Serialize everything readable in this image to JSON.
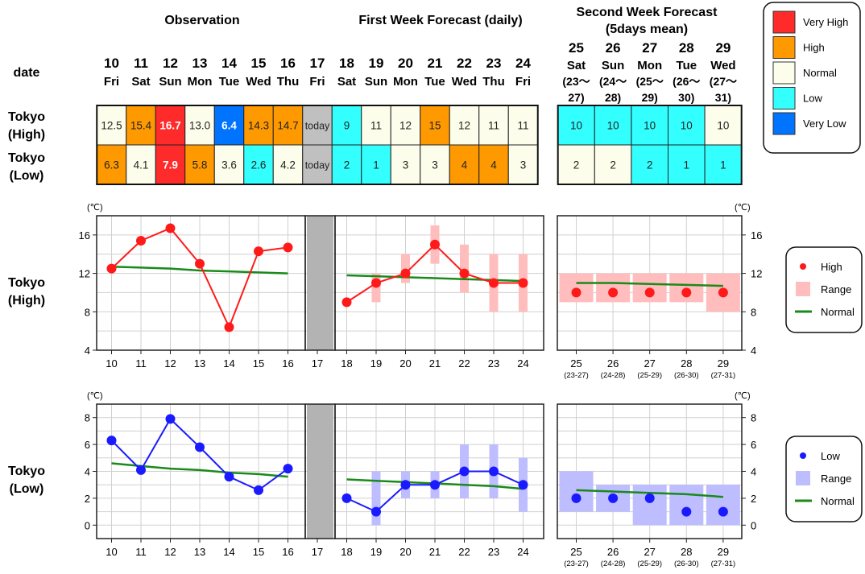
{
  "headers": {
    "observation": "Observation",
    "first_week": "First Week Forecast (daily)",
    "second_week_line1": "Second Week Forecast",
    "second_week_line2": "(5days mean)",
    "date_label": "date"
  },
  "rows": {
    "high_line1": "Tokyo",
    "high_line2": "(High)",
    "low_line1": "Tokyo",
    "low_line2": "(Low)"
  },
  "daily_columns": [
    {
      "day": "10",
      "dow": "Fri"
    },
    {
      "day": "11",
      "dow": "Sat"
    },
    {
      "day": "12",
      "dow": "Sun"
    },
    {
      "day": "13",
      "dow": "Mon"
    },
    {
      "day": "14",
      "dow": "Tue"
    },
    {
      "day": "15",
      "dow": "Wed"
    },
    {
      "day": "16",
      "dow": "Thu"
    },
    {
      "day": "17",
      "dow": "Fri"
    },
    {
      "day": "18",
      "dow": "Sat"
    },
    {
      "day": "19",
      "dow": "Sun"
    },
    {
      "day": "20",
      "dow": "Mon"
    },
    {
      "day": "21",
      "dow": "Tue"
    },
    {
      "day": "22",
      "dow": "Wed"
    },
    {
      "day": "23",
      "dow": "Thu"
    },
    {
      "day": "24",
      "dow": "Fri"
    }
  ],
  "weekly_columns": [
    {
      "day": "25",
      "dow": "Sat",
      "r1": "(23〜",
      "r2": "27)",
      "tick": "(23-27)"
    },
    {
      "day": "26",
      "dow": "Sun",
      "r1": "(24〜",
      "r2": "28)",
      "tick": "(24-28)"
    },
    {
      "day": "27",
      "dow": "Mon",
      "r1": "(25〜",
      "r2": "29)",
      "tick": "(25-29)"
    },
    {
      "day": "28",
      "dow": "Tue",
      "r1": "(26〜",
      "r2": "30)",
      "tick": "(26-30)"
    },
    {
      "day": "29",
      "dow": "Wed",
      "r1": "(27〜",
      "r2": "31)",
      "tick": "(27-31)"
    }
  ],
  "table": {
    "high_daily": [
      {
        "v": "12.5",
        "c": "normal"
      },
      {
        "v": "15.4",
        "c": "high"
      },
      {
        "v": "16.7",
        "c": "veryhigh"
      },
      {
        "v": "13.0",
        "c": "normal"
      },
      {
        "v": "6.4",
        "c": "verylow"
      },
      {
        "v": "14.3",
        "c": "high"
      },
      {
        "v": "14.7",
        "c": "high"
      },
      {
        "v": "today",
        "c": "today"
      },
      {
        "v": "9",
        "c": "low"
      },
      {
        "v": "11",
        "c": "normal"
      },
      {
        "v": "12",
        "c": "normal"
      },
      {
        "v": "15",
        "c": "high"
      },
      {
        "v": "12",
        "c": "normal"
      },
      {
        "v": "11",
        "c": "normal"
      },
      {
        "v": "11",
        "c": "normal"
      }
    ],
    "low_daily": [
      {
        "v": "6.3",
        "c": "high"
      },
      {
        "v": "4.1",
        "c": "normal"
      },
      {
        "v": "7.9",
        "c": "veryhigh"
      },
      {
        "v": "5.8",
        "c": "high"
      },
      {
        "v": "3.6",
        "c": "normal"
      },
      {
        "v": "2.6",
        "c": "low"
      },
      {
        "v": "4.2",
        "c": "normal"
      },
      {
        "v": "today",
        "c": "today"
      },
      {
        "v": "2",
        "c": "low"
      },
      {
        "v": "1",
        "c": "low"
      },
      {
        "v": "3",
        "c": "normal"
      },
      {
        "v": "3",
        "c": "normal"
      },
      {
        "v": "4",
        "c": "high"
      },
      {
        "v": "4",
        "c": "high"
      },
      {
        "v": "3",
        "c": "normal"
      }
    ],
    "high_weekly": [
      {
        "v": "10",
        "c": "low"
      },
      {
        "v": "10",
        "c": "low"
      },
      {
        "v": "10",
        "c": "low"
      },
      {
        "v": "10",
        "c": "low"
      },
      {
        "v": "10",
        "c": "normal"
      }
    ],
    "low_weekly": [
      {
        "v": "2",
        "c": "normal"
      },
      {
        "v": "2",
        "c": "normal"
      },
      {
        "v": "2",
        "c": "low"
      },
      {
        "v": "1",
        "c": "low"
      },
      {
        "v": "1",
        "c": "low"
      }
    ]
  },
  "category_legend": [
    {
      "key": "veryhigh",
      "label": "Very High"
    },
    {
      "key": "high",
      "label": "High"
    },
    {
      "key": "normal",
      "label": "Normal"
    },
    {
      "key": "low",
      "label": "Low"
    },
    {
      "key": "verylow",
      "label": "Very Low"
    }
  ],
  "colors": {
    "veryhigh": "#ff2a2a",
    "high": "#ff9900",
    "normal": "#fdfdeb",
    "low": "#33ffff",
    "verylow": "#0073ff",
    "today": "#c0c0c0",
    "high_line": "#ff1a1a",
    "high_range": "#ffbdbd",
    "low_line": "#1a1aff",
    "low_range": "#bdbdff",
    "normal_line": "#1a8a1a"
  },
  "chart_data": [
    {
      "type": "line",
      "unit": "(℃)",
      "ylim": [
        4,
        18
      ],
      "yticks": [
        4,
        8,
        12,
        16
      ],
      "x_obs": [
        "10",
        "11",
        "12",
        "13",
        "14",
        "15",
        "16"
      ],
      "x_today": "17",
      "x_fc": [
        "18",
        "19",
        "20",
        "21",
        "22",
        "23",
        "24"
      ],
      "x_wk": [
        "25",
        "26",
        "27",
        "28",
        "29"
      ],
      "obs_values": [
        12.5,
        15.4,
        16.7,
        13.0,
        6.4,
        14.3,
        14.7
      ],
      "obs_normal": [
        12.7,
        12.6,
        12.5,
        12.3,
        12.2,
        12.1,
        12.0
      ],
      "fc_values": [
        9,
        11,
        12,
        15,
        12,
        11,
        11
      ],
      "fc_range": [
        [
          9,
          9
        ],
        [
          9,
          12
        ],
        [
          11,
          14
        ],
        [
          13,
          17
        ],
        [
          10,
          15
        ],
        [
          8,
          14
        ],
        [
          8,
          14
        ]
      ],
      "fc_normal": [
        11.8,
        11.7,
        11.6,
        11.5,
        11.4,
        11.3,
        11.2
      ],
      "wk_values": [
        10,
        10,
        10,
        10,
        10
      ],
      "wk_range": [
        [
          9,
          12
        ],
        [
          9,
          12
        ],
        [
          9,
          12
        ],
        [
          9,
          12
        ],
        [
          8,
          12
        ]
      ],
      "wk_normal": [
        11.0,
        11.0,
        10.9,
        10.8,
        10.7
      ],
      "legend": {
        "point": "High",
        "range": "Range",
        "normal": "Normal"
      }
    },
    {
      "type": "line",
      "unit": "(℃)",
      "ylim": [
        -1,
        9
      ],
      "yticks": [
        0,
        2,
        4,
        6,
        8
      ],
      "x_obs": [
        "10",
        "11",
        "12",
        "13",
        "14",
        "15",
        "16"
      ],
      "x_today": "17",
      "x_fc": [
        "18",
        "19",
        "20",
        "21",
        "22",
        "23",
        "24"
      ],
      "x_wk": [
        "25",
        "26",
        "27",
        "28",
        "29"
      ],
      "obs_values": [
        6.3,
        4.1,
        7.9,
        5.8,
        3.6,
        2.6,
        4.2
      ],
      "obs_normal": [
        4.6,
        4.4,
        4.2,
        4.1,
        3.9,
        3.8,
        3.6
      ],
      "fc_values": [
        2,
        1,
        3,
        3,
        4,
        4,
        3
      ],
      "fc_range": [
        [
          2,
          2
        ],
        [
          0,
          4
        ],
        [
          2,
          4
        ],
        [
          2,
          4
        ],
        [
          2,
          6
        ],
        [
          2,
          6
        ],
        [
          1,
          5
        ]
      ],
      "fc_normal": [
        3.4,
        3.3,
        3.2,
        3.1,
        3.0,
        2.9,
        2.7
      ],
      "wk_values": [
        2,
        2,
        2,
        1,
        1
      ],
      "wk_range": [
        [
          1,
          4
        ],
        [
          1,
          3
        ],
        [
          0,
          3
        ],
        [
          0,
          3
        ],
        [
          0,
          3
        ]
      ],
      "wk_normal": [
        2.6,
        2.5,
        2.4,
        2.3,
        2.1
      ],
      "legend": {
        "point": "Low",
        "range": "Range",
        "normal": "Normal"
      }
    }
  ]
}
